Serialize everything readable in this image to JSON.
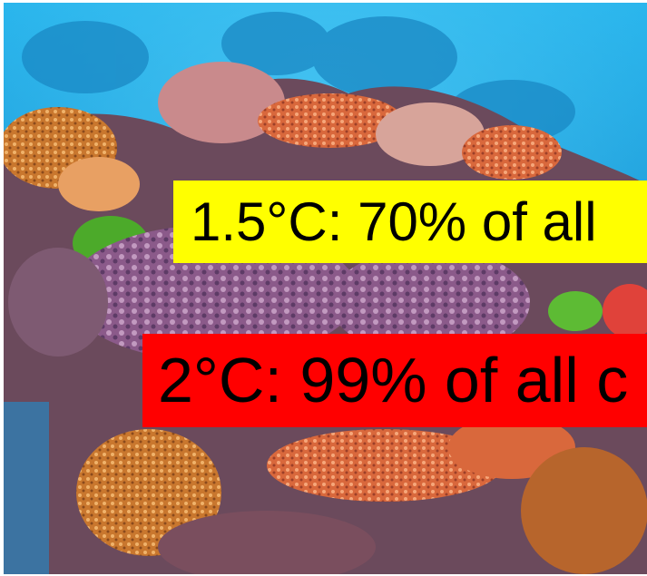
{
  "image": {
    "subject": "coral-reef-underwater-photo",
    "water_color": "#1fa6e0",
    "deep_water_color": "#1378b8"
  },
  "captions": [
    {
      "text": "1.5°C: 70% of all",
      "background": "#ffff00"
    },
    {
      "text": "2°C: 99% of all c",
      "background": "#ff0000"
    }
  ]
}
